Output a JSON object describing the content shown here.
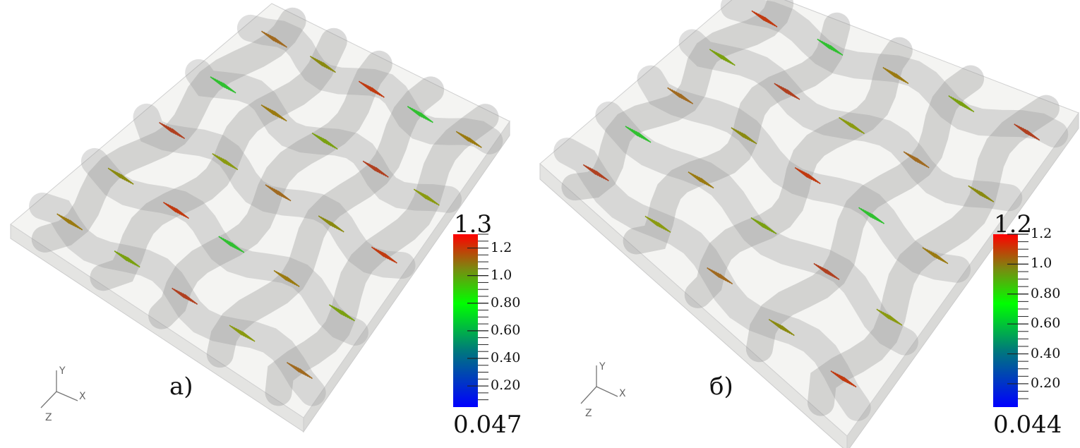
{
  "panels": [
    {
      "label": "а)",
      "colorbar": {
        "max_label": "1.3",
        "min_label": "0.047",
        "min": 0.047,
        "max": 1.3,
        "ticks": [
          "1.2",
          "1.0",
          "0.80",
          "0.60",
          "0.40",
          "0.20"
        ],
        "tick_values": [
          1.2,
          1.0,
          0.8,
          0.6,
          0.4,
          0.2
        ]
      },
      "axes": {
        "x": "X",
        "y": "Y",
        "z": "Z"
      }
    },
    {
      "label": "б)",
      "colorbar": {
        "max_label": "1.2",
        "min_label": "0.044",
        "min": 0.044,
        "max": 1.2,
        "ticks": [
          "1.2",
          "1.0",
          "0.80",
          "0.60",
          "0.40",
          "0.20"
        ],
        "tick_values": [
          1.2,
          1.0,
          0.8,
          0.6,
          0.4,
          0.2
        ]
      },
      "axes": {
        "x": "X",
        "y": "Y",
        "z": "Z"
      }
    }
  ],
  "colormap": [
    "#0000ff",
    "#007a7a",
    "#00ff00",
    "#7a8a10",
    "#ff0000"
  ]
}
